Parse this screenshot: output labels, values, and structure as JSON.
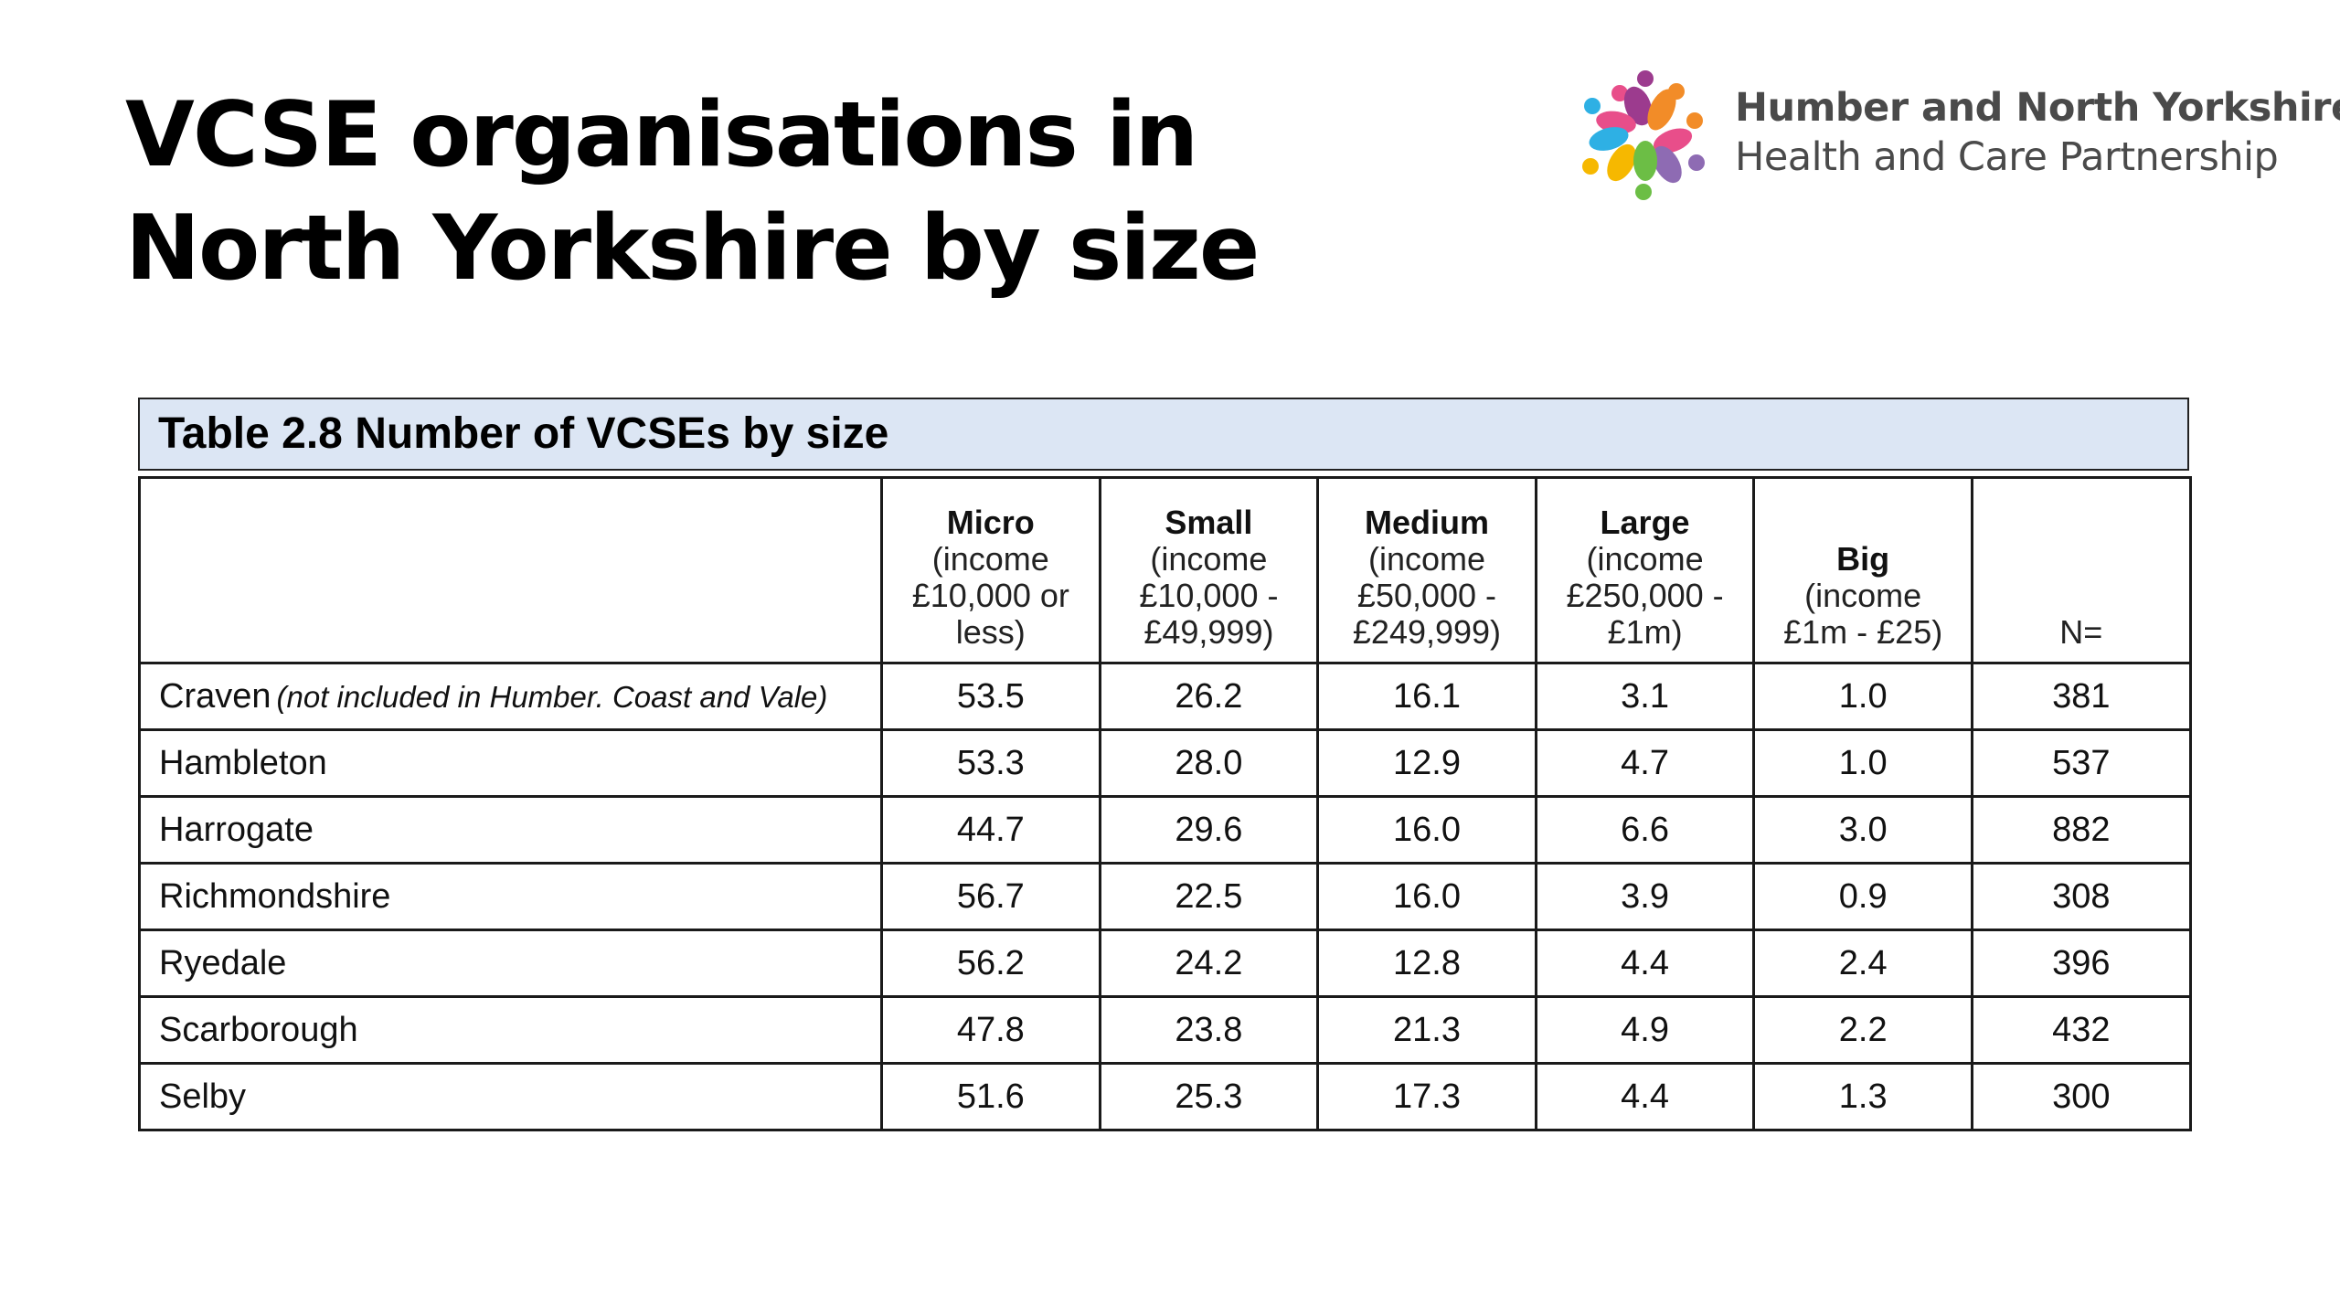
{
  "slide": {
    "title_line1": "VCSE organisations in",
    "title_line2": "North Yorkshire by size"
  },
  "logo": {
    "line1": "Humber and North Yorkshire",
    "line2": "Health and Care Partnership",
    "icon": "people-cluster-logo-icon",
    "colors": [
      "#e84e8a",
      "#9c3b8e",
      "#f28c28",
      "#f6b800",
      "#2eb0e4",
      "#6cbe45",
      "#8e6bb3"
    ]
  },
  "table": {
    "caption": "Table 2.8 Number of VCSEs by size",
    "caption_background": "#dce6f4",
    "columns": [
      {
        "name": "",
        "desc": ""
      },
      {
        "name": "Micro",
        "desc": "(income\n£10,000 or\nless)"
      },
      {
        "name": "Small",
        "desc": "(income\n£10,000 -\n£49,999)"
      },
      {
        "name": "Medium",
        "desc": "(income\n£50,000 -\n£249,999)"
      },
      {
        "name": "Large",
        "desc": "(income\n£250,000 -\n£1m)"
      },
      {
        "name": "Big",
        "desc": "(income\n£1m - £25)"
      },
      {
        "name": "",
        "desc": "N="
      }
    ],
    "rows": [
      {
        "region": "Craven",
        "note": "(not included in Humber. Coast and Vale)",
        "micro": "53.5",
        "small": "26.2",
        "medium": "16.1",
        "large": "3.1",
        "big": "1.0",
        "n": "381"
      },
      {
        "region": "Hambleton",
        "note": "",
        "micro": "53.3",
        "small": "28.0",
        "medium": "12.9",
        "large": "4.7",
        "big": "1.0",
        "n": "537"
      },
      {
        "region": "Harrogate",
        "note": "",
        "micro": "44.7",
        "small": "29.6",
        "medium": "16.0",
        "large": "6.6",
        "big": "3.0",
        "n": "882"
      },
      {
        "region": "Richmondshire",
        "note": "",
        "micro": "56.7",
        "small": "22.5",
        "medium": "16.0",
        "large": "3.9",
        "big": "0.9",
        "n": "308"
      },
      {
        "region": "Ryedale",
        "note": "",
        "micro": "56.2",
        "small": "24.2",
        "medium": "12.8",
        "large": "4.4",
        "big": "2.4",
        "n": "396"
      },
      {
        "region": "Scarborough",
        "note": "",
        "micro": "47.8",
        "small": "23.8",
        "medium": "21.3",
        "large": "4.9",
        "big": "2.2",
        "n": "432"
      },
      {
        "region": "Selby",
        "note": "",
        "micro": "51.6",
        "small": "25.3",
        "medium": "17.3",
        "large": "4.4",
        "big": "1.3",
        "n": "300"
      }
    ]
  }
}
